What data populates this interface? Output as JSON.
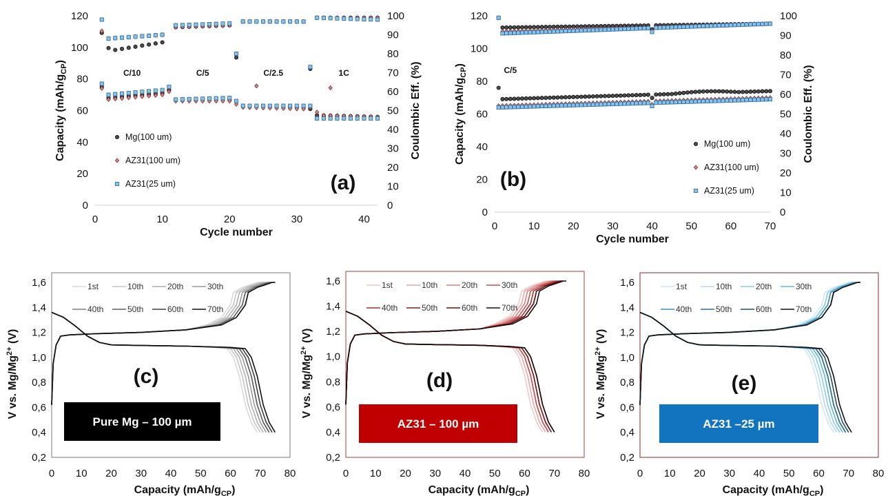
{
  "chart_data": [
    {
      "id": "a",
      "type": "scatter",
      "panel_label": "(a)",
      "xlabel": "Cycle number",
      "ylabel": "Capacity (mAh/g",
      "ylabel_sub": "CP",
      "ylabel_end": ")",
      "y2label": "Coulombic Eff. (%)",
      "xlim": [
        0,
        42
      ],
      "ylim": [
        0,
        120
      ],
      "y2lim": [
        0,
        100
      ],
      "xticks": [
        "0",
        "10",
        "20",
        "30",
        "40"
      ],
      "yticks": [
        "0",
        "20",
        "40",
        "60",
        "80",
        "100",
        "120"
      ],
      "y2ticks": [
        "0",
        "10",
        "20",
        "30",
        "40",
        "50",
        "60",
        "70",
        "80",
        "90",
        "100"
      ],
      "rate_labels": [
        {
          "text": "C/10",
          "x": 5.5,
          "y": 82
        },
        {
          "text": "C/5",
          "x": 16,
          "y": 82
        },
        {
          "text": "C/2.5",
          "x": 26.5,
          "y": 82
        },
        {
          "text": "1C",
          "x": 37,
          "y": 82
        }
      ],
      "legend": [
        "Mg(100 um)",
        "AZ31(100 um)",
        "AZ31(25 um)"
      ],
      "series": [
        {
          "name": "Mg(100 um)",
          "capacity_segments": [
            [
              1,
              75
            ],
            [
              2,
              68,
              10,
              71
            ],
            [
              11,
              73
            ],
            [
              12,
              67,
              20,
              67
            ],
            [
              21,
              66
            ],
            [
              22,
              63,
              31,
              62
            ],
            [
              32,
              61
            ],
            [
              33,
              57,
              42,
              56
            ]
          ],
          "ce_segments": [
            [
              1,
              91
            ],
            [
              2,
              83
            ],
            [
              3,
              82,
              10,
              86
            ],
            [
              12,
              94,
              20,
              95
            ],
            [
              21,
              78
            ],
            [
              22,
              97,
              31,
              97
            ],
            [
              32,
              72
            ],
            [
              33,
              99,
              42,
              99
            ]
          ]
        },
        {
          "name": "AZ31(100 um)",
          "capacity_segments": [
            [
              1,
              74
            ],
            [
              2,
              67,
              10,
              70
            ],
            [
              11,
              72
            ],
            [
              12,
              66,
              20,
              66
            ],
            [
              21,
              64
            ],
            [
              22,
              62,
              31,
              61
            ],
            [
              32,
              62
            ],
            [
              33,
              59
            ],
            [
              34,
              57,
              42,
              56
            ]
          ],
          "ce_segments": [
            [
              1,
              92
            ],
            [
              2,
              88,
              10,
              90
            ],
            [
              12,
              94,
              20,
              95
            ],
            [
              21,
              80
            ],
            [
              22,
              97,
              31,
              97
            ],
            [
              24,
              63
            ],
            [
              33,
              99,
              42,
              99
            ],
            [
              35,
              62
            ]
          ]
        },
        {
          "name": "AZ31(25 um)",
          "capacity_segments": [
            [
              1,
              77
            ],
            [
              2,
              70,
              10,
              73
            ],
            [
              11,
              75
            ],
            [
              12,
              67,
              20,
              68
            ],
            [
              21,
              66
            ],
            [
              22,
              63,
              31,
              63
            ],
            [
              32,
              63
            ],
            [
              33,
              55,
              42,
              55
            ]
          ],
          "ce_segments": [
            [
              1,
              98
            ],
            [
              2,
              88,
              10,
              90
            ],
            [
              12,
              95,
              20,
              96
            ],
            [
              21,
              80
            ],
            [
              22,
              97,
              31,
              97
            ],
            [
              32,
              73
            ],
            [
              33,
              99,
              42,
              98
            ]
          ]
        }
      ]
    },
    {
      "id": "b",
      "type": "scatter",
      "panel_label": "(b)",
      "rate_label": "C/5",
      "xlabel": "Cycle number",
      "ylabel": "Capacity (mAh/g",
      "ylabel_sub": "CP",
      "ylabel_end": ")",
      "y2label": "Coulombic Eff. (%)",
      "xlim": [
        0,
        70
      ],
      "ylim": [
        0,
        120
      ],
      "y2lim": [
        0,
        100
      ],
      "xticks": [
        "0",
        "10",
        "20",
        "30",
        "40",
        "50",
        "60",
        "70"
      ],
      "yticks": [
        "0",
        "20",
        "40",
        "60",
        "80",
        "100",
        "120"
      ],
      "y2ticks": [
        "0",
        "10",
        "20",
        "30",
        "40",
        "50",
        "60",
        "70",
        "80",
        "90",
        "100"
      ],
      "legend": [
        "Mg(100 um)",
        "AZ31(100 um)",
        "AZ31(25 um)"
      ],
      "series": [
        {
          "name": "Mg(100 um)",
          "capacity_start": 69,
          "capacity_end": 74,
          "capacity_peak": 75,
          "first_cycle_capacity": 76,
          "ce_start": 94,
          "ce_end": 96
        },
        {
          "name": "AZ31(100 um)",
          "capacity_start": 65,
          "capacity_end": 70,
          "ce_start": 92,
          "ce_end": 96
        },
        {
          "name": "AZ31(25 um)",
          "capacity_start": 64,
          "capacity_end": 69,
          "ce_start": 91,
          "ce_end": 96
        }
      ]
    },
    {
      "id": "c",
      "type": "line",
      "panel_label": "(c)",
      "box_label": "Pure Mg – 100 µm",
      "box_color": "#000000",
      "xlabel": "Capacity (mAh/g",
      "xlabel_sub": "CP",
      "xlabel_end": ")",
      "ylabel": "V vs. Mg/Mg",
      "ylabel_sup": "2+",
      "ylabel_end": " (V)",
      "xlim": [
        0,
        80
      ],
      "ylim": [
        0.2,
        1.6
      ],
      "xticks": [
        "0",
        "10",
        "20",
        "30",
        "40",
        "50",
        "60",
        "70",
        "80"
      ],
      "yticks": [
        "0,2",
        "0,4",
        "0,6",
        "0,8",
        "1,0",
        "1,2",
        "1,4",
        "1,6"
      ],
      "legend": [
        "1st",
        "10th",
        "20th",
        "30th",
        "40th",
        "50th",
        "60th",
        "70th"
      ],
      "charge_end_capacity": [
        69,
        70,
        71,
        72,
        73,
        73,
        74,
        74
      ],
      "discharge_end_capacity": [
        69,
        70,
        71,
        72,
        73,
        73,
        74,
        75
      ],
      "colors": [
        "#d9d9d9",
        "#c4c4c4",
        "#aeaeae",
        "#989898",
        "#7d7d7d",
        "#5f5f5f",
        "#3e3e3e",
        "#111111"
      ]
    },
    {
      "id": "d",
      "type": "line",
      "panel_label": "(d)",
      "box_label": "AZ31 – 100 µm",
      "box_color": "#c00000",
      "xlabel": "Capacity (mAh/g",
      "xlabel_sub": "CP",
      "xlabel_end": ")",
      "ylabel": "V vs. Mg/Mg",
      "ylabel_sup": "2+",
      "ylabel_end": " (V)",
      "xlim": [
        0,
        80
      ],
      "ylim": [
        0.2,
        1.6
      ],
      "xticks": [
        "0",
        "10",
        "20",
        "30",
        "40",
        "50",
        "60",
        "70",
        "80"
      ],
      "yticks": [
        "0,2",
        "0,4",
        "0,6",
        "0,8",
        "1,0",
        "1,2",
        "1,4",
        "1,6"
      ],
      "legend": [
        "1st",
        "10th",
        "20th",
        "30th",
        "40th",
        "50th",
        "60th",
        "70th"
      ],
      "charge_end_capacity": [
        67,
        68,
        69,
        70,
        71,
        72,
        72,
        73
      ],
      "discharge_end_capacity": [
        66,
        67,
        68,
        68,
        69,
        69,
        70,
        70
      ],
      "colors": [
        "#f1c9c9",
        "#e7a7a7",
        "#d98080",
        "#c05050",
        "#a12e2e",
        "#7d1d1d",
        "#5c1515",
        "#1a0a0a"
      ]
    },
    {
      "id": "e",
      "type": "line",
      "panel_label": "(e)",
      "box_label": "AZ31 –25 µm",
      "box_color": "#1273bf",
      "xlabel": "Capacity (mAh/g",
      "xlabel_sub": "CP",
      "xlabel_end": ")",
      "ylabel": "V vs. Mg/Mg",
      "ylabel_sup": "2+",
      "ylabel_end": " (V)",
      "xlim": [
        0,
        80
      ],
      "ylim": [
        0.2,
        1.6
      ],
      "xticks": [
        "0",
        "10",
        "20",
        "30",
        "40",
        "50",
        "60",
        "70",
        "80"
      ],
      "yticks": [
        "0,2",
        "0,4",
        "0,6",
        "0,8",
        "1,0",
        "1,2",
        "1,4",
        "1,6"
      ],
      "legend": [
        "1st",
        "10th",
        "20th",
        "30th",
        "40th",
        "50th",
        "60th",
        "70th"
      ],
      "charge_end_capacity": [
        70,
        71,
        71,
        72,
        72,
        73,
        73,
        73
      ],
      "discharge_end_capacity": [
        65,
        66,
        67,
        68,
        69,
        69,
        70,
        71
      ],
      "colors": [
        "#cfe8f5",
        "#b2dbef",
        "#8ccbe6",
        "#5fb3d6",
        "#3c8fb4",
        "#2f6f86",
        "#254f5e",
        "#111111"
      ]
    }
  ]
}
